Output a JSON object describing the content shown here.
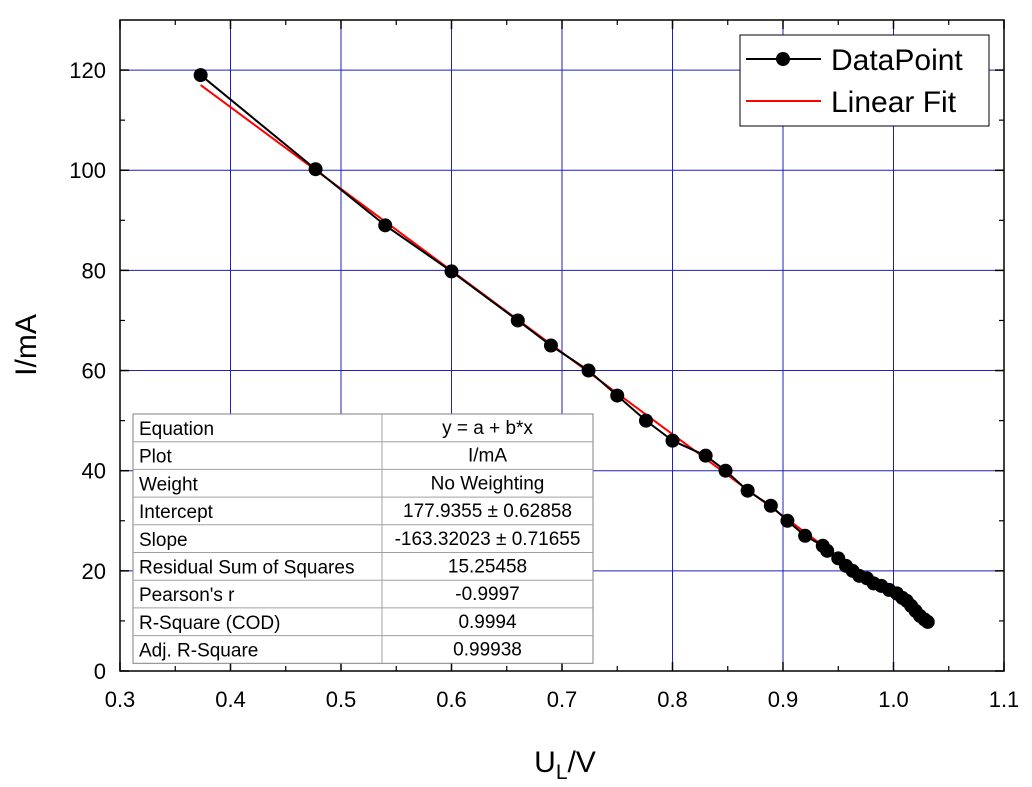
{
  "chart_data": {
    "type": "scatter",
    "title": "",
    "xlabel_main": "U",
    "xlabel_sub": "L",
    "xlabel_suffix": "/V",
    "ylabel": "I/mA",
    "xlim": [
      0.3,
      1.1
    ],
    "ylim": [
      0,
      130
    ],
    "x_ticks": [
      "0.3",
      "0.4",
      "0.5",
      "0.6",
      "0.7",
      "0.8",
      "0.9",
      "1.0",
      "1.1"
    ],
    "y_ticks": [
      "0",
      "20",
      "40",
      "60",
      "80",
      "100",
      "120"
    ],
    "grid": true,
    "legend_position": "top-right",
    "series": [
      {
        "name": "DataPoint",
        "color": "#000000",
        "x": [
          0.373,
          0.477,
          0.54,
          0.6,
          0.66,
          0.69,
          0.724,
          0.75,
          0.776,
          0.8,
          0.83,
          0.848,
          0.868,
          0.889,
          0.904,
          0.92,
          0.936,
          0.94,
          0.95,
          0.957,
          0.963,
          0.969,
          0.976,
          0.982,
          0.989,
          0.996,
          1.003,
          1.008,
          1.012,
          1.016,
          1.02,
          1.024,
          1.028,
          1.031
        ],
        "y": [
          119,
          100.2,
          89,
          79.8,
          70,
          65,
          60,
          55,
          50,
          46,
          43,
          40,
          36,
          33,
          30,
          27,
          25,
          24,
          22.5,
          21,
          20,
          19,
          18.5,
          17.5,
          17,
          16.2,
          15.5,
          14.6,
          14,
          13,
          12,
          11,
          10.3,
          9.8
        ]
      },
      {
        "name": "Linear Fit",
        "color": "#ff0000",
        "fit_intercept": 177.9355,
        "fit_slope": -163.32023,
        "x_range": [
          0.373,
          1.031
        ]
      }
    ],
    "stats_table": {
      "rows": [
        [
          "Equation",
          "y = a + b*x"
        ],
        [
          "Plot",
          "I/mA"
        ],
        [
          "Weight",
          "No Weighting"
        ],
        [
          "Intercept",
          "177.9355 ± 0.62858"
        ],
        [
          "Slope",
          "-163.32023 ± 0.71655"
        ],
        [
          "Residual Sum of Squares",
          "15.25458"
        ],
        [
          "Pearson's r",
          "-0.9997"
        ],
        [
          "R-Square (COD)",
          "0.9994"
        ],
        [
          "Adj. R-Square",
          "0.99938"
        ]
      ]
    }
  }
}
